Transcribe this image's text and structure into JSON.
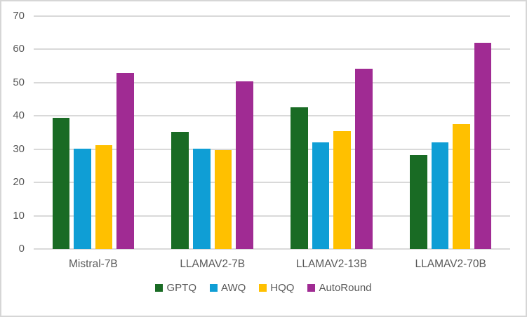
{
  "chart_data": {
    "type": "bar",
    "title": "",
    "xlabel": "",
    "ylabel": "",
    "categories": [
      "Mistral-7B",
      "LLAMAV2-7B",
      "LLAMAV2-13B",
      "LLAMAV2-70B"
    ],
    "series": [
      {
        "name": "GPTQ",
        "color": "#196B24",
        "values": [
          39.5,
          35.3,
          42.5,
          28.2
        ]
      },
      {
        "name": "AWQ",
        "color": "#0F9ED5",
        "values": [
          30.1,
          30.1,
          32.1,
          32.1
        ]
      },
      {
        "name": "HQQ",
        "color": "#FFC000",
        "values": [
          31.2,
          29.8,
          35.4,
          37.5
        ]
      },
      {
        "name": "AutoRound",
        "color": "#A02B93",
        "values": [
          52.9,
          50.3,
          54.2,
          61.9
        ]
      }
    ],
    "ylim": [
      0,
      70
    ],
    "ytick_step": 10,
    "ytick_labels": [
      "0",
      "10",
      "20",
      "30",
      "40",
      "50",
      "60",
      "70"
    ],
    "grid": true,
    "legend_position": "bottom",
    "legend_labels": [
      "GPTQ",
      "AWQ",
      "HQQ",
      "AutoRound"
    ]
  },
  "style": {
    "axis_text_color": "#595959",
    "gridline_color": "#D9D9D9",
    "border_color": "#D6D6D6",
    "background_color": "#FFFFFF"
  }
}
